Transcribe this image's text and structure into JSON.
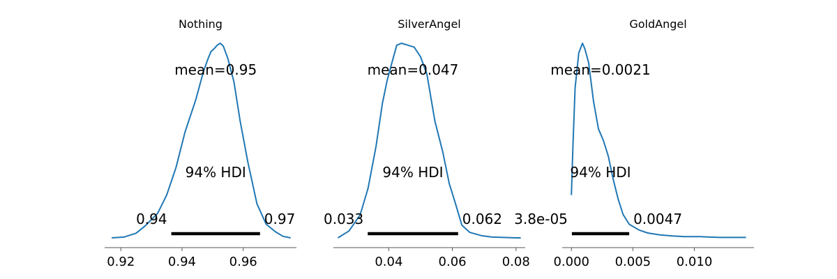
{
  "chart_data": [
    {
      "type": "line",
      "title": "Nothing",
      "mean_label": "mean=0.95",
      "hdi_label": "94% HDI",
      "hdi_low_label": "0.94",
      "hdi_high_label": "0.97",
      "hdi": [
        0.9365,
        0.9655
      ],
      "xlim": [
        0.9147,
        0.9774
      ],
      "xticks": [
        0.92,
        0.94,
        0.96
      ],
      "xtick_labels": [
        "0.92",
        "0.94",
        "0.96"
      ],
      "ylim": [
        0,
        1
      ],
      "x": [
        0.917,
        0.921,
        0.925,
        0.928,
        0.932,
        0.935,
        0.938,
        0.941,
        0.9445,
        0.947,
        0.9485,
        0.9495,
        0.9505,
        0.9515,
        0.9525,
        0.9535,
        0.955,
        0.957,
        0.959,
        0.9615,
        0.9645,
        0.9675,
        0.9705,
        0.973,
        0.9755
      ],
      "y": [
        0.0,
        0.004,
        0.024,
        0.062,
        0.125,
        0.22,
        0.36,
        0.545,
        0.71,
        0.855,
        0.92,
        0.958,
        0.972,
        0.99,
        1.0,
        0.985,
        0.92,
        0.8,
        0.6,
        0.39,
        0.175,
        0.07,
        0.032,
        0.008,
        0.0
      ]
    },
    {
      "type": "line",
      "title": "SilverAngel",
      "mean_label": "mean=0.047",
      "hdi_label": "94% HDI",
      "hdi_low_label": "0.033",
      "hdi_high_label": "0.062",
      "hdi": [
        0.0334,
        0.0618
      ],
      "xlim": [
        0.0226,
        0.0829
      ],
      "xticks": [
        0.04,
        0.06,
        0.08
      ],
      "xtick_labels": [
        "0.04",
        "0.06",
        "0.08"
      ],
      "ylim": [
        0,
        1
      ],
      "x": [
        0.024,
        0.0275,
        0.031,
        0.0335,
        0.036,
        0.038,
        0.0395,
        0.041,
        0.0425,
        0.044,
        0.046,
        0.048,
        0.05,
        0.052,
        0.0545,
        0.057,
        0.059,
        0.061,
        0.063,
        0.0655,
        0.069,
        0.0725,
        0.076,
        0.08,
        0.0815
      ],
      "y": [
        0.0,
        0.035,
        0.118,
        0.255,
        0.47,
        0.69,
        0.81,
        0.9,
        0.99,
        1.0,
        0.99,
        0.98,
        0.93,
        0.84,
        0.6,
        0.44,
        0.28,
        0.175,
        0.065,
        0.028,
        0.012,
        0.004,
        0.002,
        0.0,
        0.0
      ]
    },
    {
      "type": "line",
      "title": "GoldAngel",
      "mean_label": "mean=0.0021",
      "hdi_label": "94% HDI",
      "hdi_low_label": "3.8e-05",
      "hdi_high_label": "0.0047",
      "hdi": [
        3.8e-05,
        0.0047
      ],
      "xlim": [
        -0.00075,
        0.01485
      ],
      "xticks": [
        0.0,
        0.005,
        0.01
      ],
      "xtick_labels": [
        "0.000",
        "0.005",
        "0.010"
      ],
      "ylim": [
        0,
        1
      ],
      "x": [
        0.0,
        0.00012,
        0.0003,
        0.0006,
        0.0009,
        0.0011,
        0.0014,
        0.0018,
        0.0022,
        0.0026,
        0.003,
        0.0034,
        0.0038,
        0.0042,
        0.0047,
        0.0055,
        0.0062,
        0.0072,
        0.0082,
        0.0092,
        0.0105,
        0.012,
        0.0135,
        0.0142
      ],
      "y": [
        0.22,
        0.46,
        0.77,
        0.95,
        1.0,
        0.97,
        0.9,
        0.7,
        0.56,
        0.5,
        0.42,
        0.3,
        0.2,
        0.12,
        0.07,
        0.04,
        0.025,
        0.015,
        0.01,
        0.006,
        0.006,
        0.002,
        0.002,
        0.002
      ]
    }
  ]
}
